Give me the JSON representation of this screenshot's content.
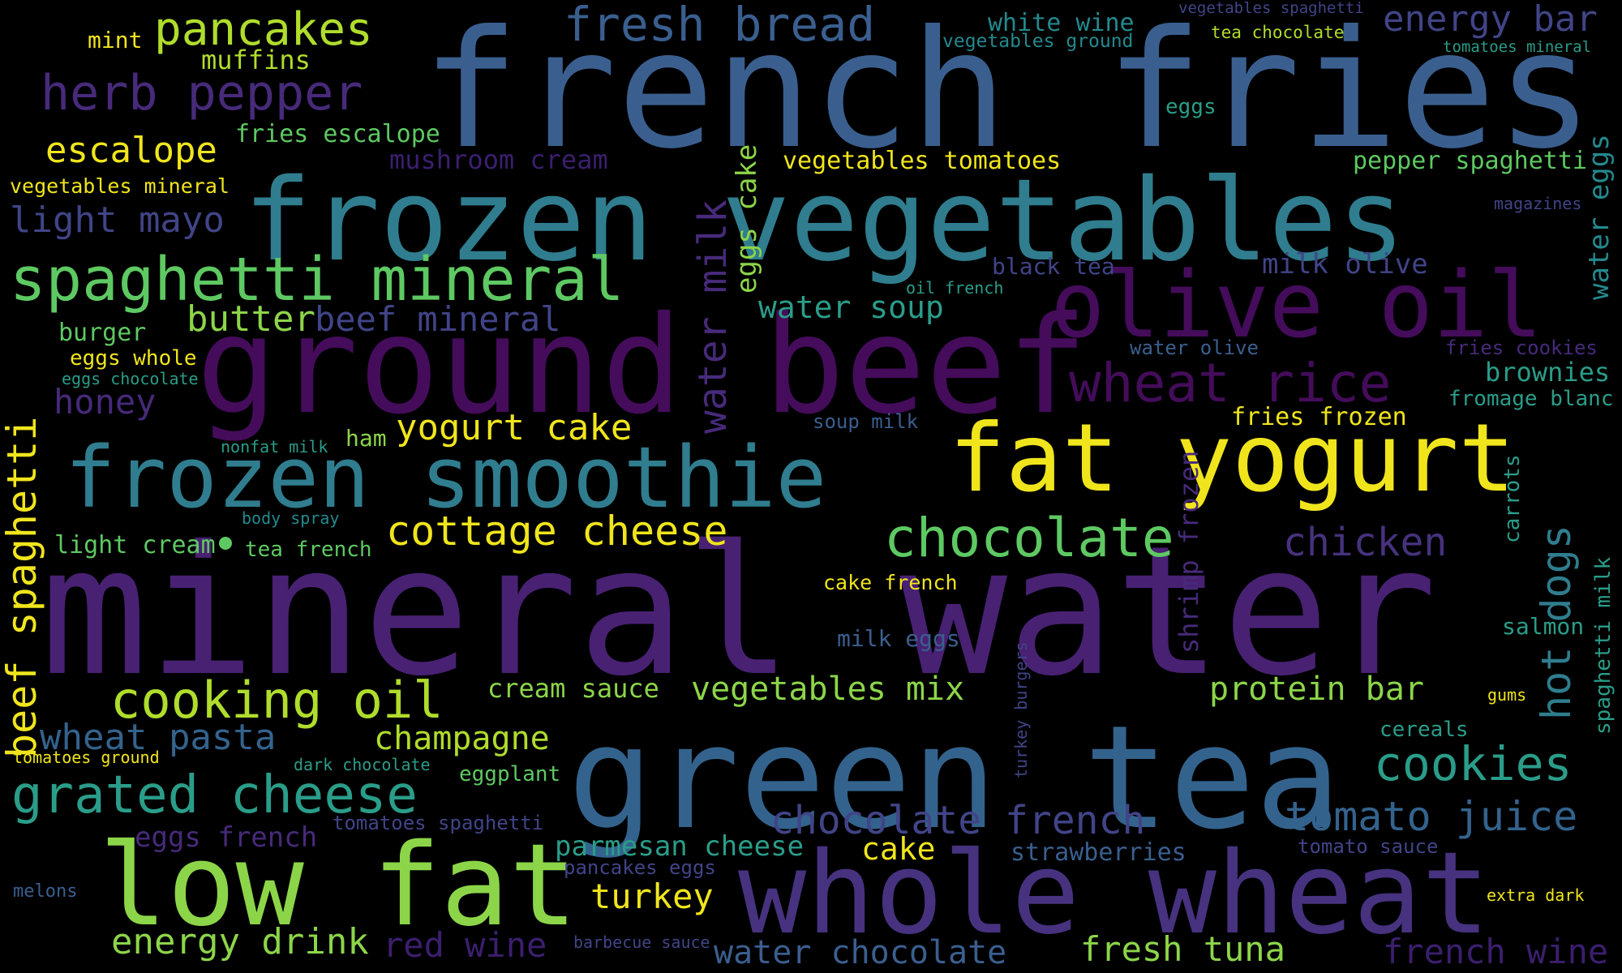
{
  "palette": {
    "background": "#000000",
    "yellow": "#f0e51c",
    "lime": "#b0dc2c",
    "lightgreen": "#8cd549",
    "green": "#5ec962",
    "teal": "#2a9d89",
    "teal2": "#23898e",
    "teal3": "#2f7d8e",
    "blue": "#3a5f8f",
    "blue2": "#33638d",
    "indigo": "#414487",
    "indigo2": "#46327e",
    "purple": "#472a7a",
    "purple2": "#482173",
    "violet": "#440c5a",
    "violet2": "#3b1f6e"
  },
  "words": [
    {
      "text": "mineral water",
      "color": "purple2"
    },
    {
      "text": "french fries",
      "color": "blue"
    },
    {
      "text": "frozen vegetables",
      "color": "teal3"
    },
    {
      "text": "ground beef",
      "color": "violet"
    },
    {
      "text": "green tea",
      "color": "blue2"
    },
    {
      "text": "whole wheat",
      "color": "indigo2"
    },
    {
      "text": "low fat",
      "color": "lightgreen"
    },
    {
      "text": "fat yogurt",
      "color": "yellow"
    },
    {
      "text": "frozen smoothie",
      "color": "teal3"
    },
    {
      "text": "olive oil",
      "color": "violet"
    },
    {
      "text": "spaghetti mineral",
      "color": "green"
    },
    {
      "text": "herb pepper",
      "color": "purple"
    },
    {
      "text": "pancakes",
      "color": "lime"
    },
    {
      "text": "fresh bread",
      "color": "blue"
    },
    {
      "text": "energy bar",
      "color": "indigo"
    },
    {
      "text": "white wine",
      "color": "teal2"
    },
    {
      "text": "vegetables spaghetti",
      "color": "indigo"
    },
    {
      "text": "vegetables ground",
      "color": "teal2"
    },
    {
      "text": "tea chocolate",
      "color": "lime"
    },
    {
      "text": "tomatoes mineral",
      "color": "teal"
    },
    {
      "text": "mint",
      "color": "yellow"
    },
    {
      "text": "muffins",
      "color": "lime"
    },
    {
      "text": "escalope",
      "color": "yellow"
    },
    {
      "text": "fries escalope",
      "color": "green"
    },
    {
      "text": "mushroom cream",
      "color": "violet2"
    },
    {
      "text": "vegetables tomatoes",
      "color": "yellow"
    },
    {
      "text": "eggs cake",
      "color": "lightgreen"
    },
    {
      "text": "vegetables mineral",
      "color": "yellow"
    },
    {
      "text": "light mayo",
      "color": "indigo"
    },
    {
      "text": "eggs",
      "color": "teal"
    },
    {
      "text": "pepper spaghetti",
      "color": "green"
    },
    {
      "text": "water eggs",
      "color": "teal2"
    },
    {
      "text": "magazines",
      "color": "indigo"
    },
    {
      "text": "water milk",
      "color": "purple"
    },
    {
      "text": "black tea",
      "color": "indigo"
    },
    {
      "text": "milk olive",
      "color": "indigo"
    },
    {
      "text": "oil french",
      "color": "teal"
    },
    {
      "text": "butter",
      "color": "lightgreen"
    },
    {
      "text": "beef mineral",
      "color": "indigo"
    },
    {
      "text": "water soup",
      "color": "teal"
    },
    {
      "text": "burger",
      "color": "green"
    },
    {
      "text": "eggs whole",
      "color": "yellow"
    },
    {
      "text": "eggs chocolate",
      "color": "teal"
    },
    {
      "text": "honey",
      "color": "purple"
    },
    {
      "text": "wheat rice",
      "color": "violet"
    },
    {
      "text": "water olive",
      "color": "blue"
    },
    {
      "text": "fries cookies",
      "color": "purple"
    },
    {
      "text": "brownies",
      "color": "teal"
    },
    {
      "text": "fromage blanc",
      "color": "teal"
    },
    {
      "text": "beef spaghetti",
      "color": "yellow"
    },
    {
      "text": "yogurt cake",
      "color": "yellow"
    },
    {
      "text": "ham",
      "color": "lightgreen"
    },
    {
      "text": "nonfat milk",
      "color": "teal"
    },
    {
      "text": "soup milk",
      "color": "blue"
    },
    {
      "text": "fries frozen",
      "color": "yellow"
    },
    {
      "text": "body spray",
      "color": "teal2"
    },
    {
      "text": "light cream",
      "color": "green"
    },
    {
      "text": "tea french",
      "color": "green"
    },
    {
      "text": "cottage cheese",
      "color": "yellow"
    },
    {
      "text": "chocolate",
      "color": "green"
    },
    {
      "text": "shrimp frozen",
      "color": "purple"
    },
    {
      "text": "chicken",
      "color": "indigo2"
    },
    {
      "text": "carrots",
      "color": "teal"
    },
    {
      "text": "hot dogs",
      "color": "teal3"
    },
    {
      "text": "spaghetti milk",
      "color": "teal"
    },
    {
      "text": "cake french",
      "color": "yellow"
    },
    {
      "text": "salmon",
      "color": "teal"
    },
    {
      "text": "milk eggs",
      "color": "blue"
    },
    {
      "text": "cooking oil",
      "color": "lime"
    },
    {
      "text": "cream sauce",
      "color": "lightgreen"
    },
    {
      "text": "vegetables mix",
      "color": "lightgreen"
    },
    {
      "text": "protein bar",
      "color": "lightgreen"
    },
    {
      "text": "gums",
      "color": "yellow"
    },
    {
      "text": "turkey burgers",
      "color": "indigo"
    },
    {
      "text": "wheat pasta",
      "color": "blue2"
    },
    {
      "text": "champagne",
      "color": "lime"
    },
    {
      "text": "tomatoes ground",
      "color": "yellow"
    },
    {
      "text": "dark chocolate",
      "color": "teal"
    },
    {
      "text": "eggplant",
      "color": "green"
    },
    {
      "text": "cereals",
      "color": "teal"
    },
    {
      "text": "cookies",
      "color": "teal"
    },
    {
      "text": "grated cheese",
      "color": "teal"
    },
    {
      "text": "chocolate french",
      "color": "indigo"
    },
    {
      "text": "tomato juice",
      "color": "blue2"
    },
    {
      "text": "eggs french",
      "color": "purple"
    },
    {
      "text": "tomatoes spaghetti",
      "color": "indigo"
    },
    {
      "text": "parmesan cheese",
      "color": "teal"
    },
    {
      "text": "pancakes eggs",
      "color": "indigo"
    },
    {
      "text": "cake",
      "color": "yellow"
    },
    {
      "text": "strawberries",
      "color": "blue"
    },
    {
      "text": "tomato sauce",
      "color": "indigo"
    },
    {
      "text": "turkey",
      "color": "yellow"
    },
    {
      "text": "melons",
      "color": "blue"
    },
    {
      "text": "extra dark",
      "color": "yellow"
    },
    {
      "text": "energy drink",
      "color": "lightgreen"
    },
    {
      "text": "red wine",
      "color": "violet2"
    },
    {
      "text": "barbecue sauce",
      "color": "indigo"
    },
    {
      "text": "water chocolate",
      "color": "blue"
    },
    {
      "text": "fresh tuna",
      "color": "lightgreen"
    },
    {
      "text": "french wine",
      "color": "violet2"
    }
  ]
}
